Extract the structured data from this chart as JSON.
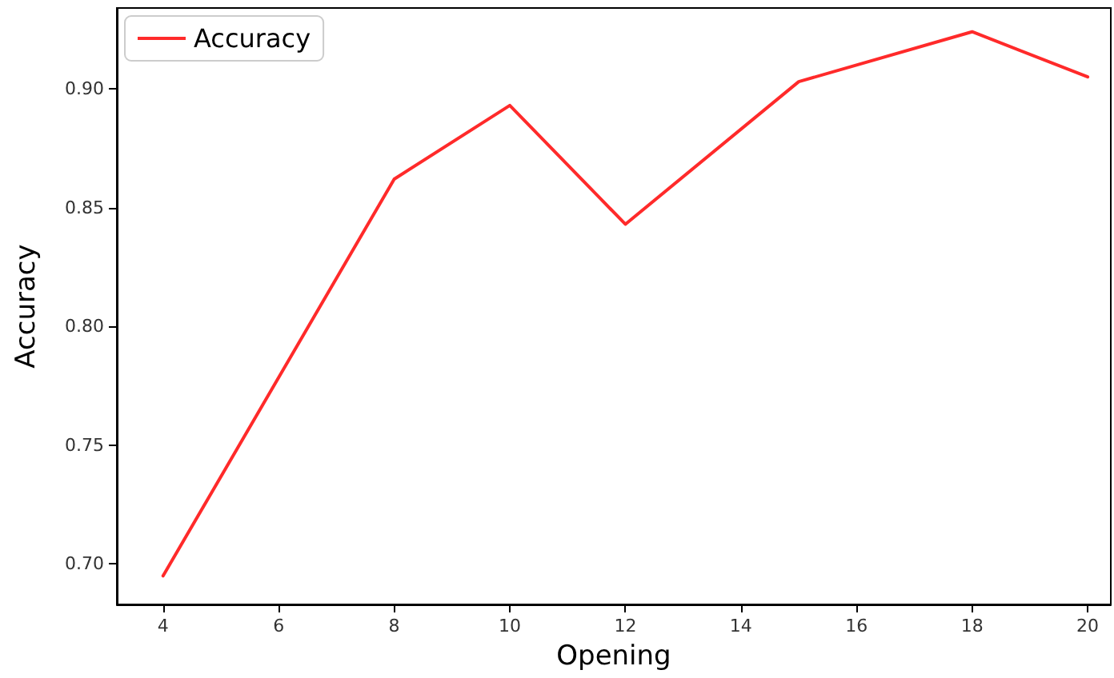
{
  "chart_data": {
    "type": "line",
    "xlabel": "Opening",
    "ylabel": "Accuracy",
    "x": [
      4,
      8,
      10,
      12,
      15,
      18,
      20
    ],
    "series": [
      {
        "name": "Accuracy",
        "color": "#ff2a2a",
        "values": [
          0.695,
          0.862,
          0.893,
          0.843,
          0.903,
          0.924,
          0.905
        ]
      }
    ],
    "xlim": [
      3.2,
      20.4
    ],
    "xticks": [
      4,
      6,
      8,
      10,
      12,
      14,
      16,
      18,
      20
    ],
    "ylim": [
      0.683,
      0.934
    ],
    "yticks": [
      {
        "value": 0.7,
        "label": "0.70"
      },
      0.75,
      {
        "value": 0.8,
        "label": "0.80"
      },
      0.85,
      {
        "value": 0.9,
        "label": "0.90"
      }
    ],
    "grid": false,
    "legend": "top left",
    "marker": "none",
    "line_style": "solid"
  }
}
